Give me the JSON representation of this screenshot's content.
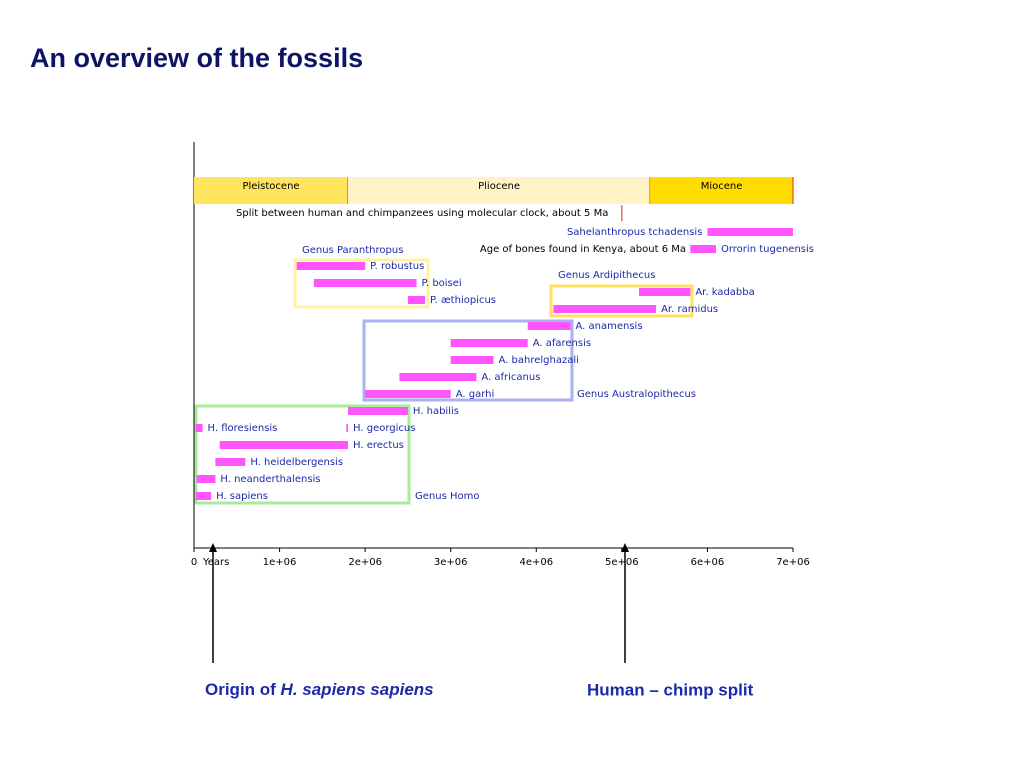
{
  "title": "An overview of the fossils",
  "chart_data": {
    "type": "timeline",
    "x_label": "Years",
    "xlim": [
      0,
      7000000
    ],
    "xticks": [
      0,
      {
        "value": 1000000,
        "label": "1e+06"
      },
      {
        "value": 2000000,
        "label": "2e+06"
      },
      {
        "value": 3000000,
        "label": "3e+06"
      },
      {
        "value": 4000000,
        "label": "4e+06"
      },
      {
        "value": 5000000,
        "label": "5e+06"
      },
      {
        "value": 6000000,
        "label": "6e+06"
      },
      {
        "value": 7000000,
        "label": "7e+06"
      }
    ],
    "epochs": [
      {
        "name": "Pleistocene",
        "start": 0,
        "end": 1800000,
        "color": "#ffe45e"
      },
      {
        "name": "Pliocene",
        "start": 1800000,
        "end": 5330000,
        "color": "#fff2c4"
      },
      {
        "name": "Miocene",
        "start": 5330000,
        "end": 7000000,
        "color": "#ffdd00"
      }
    ],
    "split": {
      "value": 5000000,
      "label": "Split between human and chimpanzees using molecular clock, about 5 Ma"
    },
    "kenya_note": "Age of bones found in Kenya, about 6 Ma",
    "bar_color": "#ff55ff",
    "bars": [
      {
        "name": "Sahelanthropus tchadensis",
        "start": 6000000,
        "end": 7000000
      },
      {
        "name": "Orrorin tugenensis",
        "start": 5800000,
        "end": 6100000
      },
      {
        "name": "P. robustus",
        "start": 1200000,
        "end": 2000000
      },
      {
        "name": "P. boisei",
        "start": 1400000,
        "end": 2600000
      },
      {
        "name": "P. æthiopicus",
        "start": 2500000,
        "end": 2700000
      },
      {
        "name": "Ar. kadabba",
        "start": 5200000,
        "end": 5800000
      },
      {
        "name": "Ar. ramidus",
        "start": 4200000,
        "end": 5400000
      },
      {
        "name": "A. anamensis",
        "start": 3900000,
        "end": 4400000
      },
      {
        "name": "A. afarensis",
        "start": 3000000,
        "end": 3900000
      },
      {
        "name": "A. bahrelghazali",
        "start": 3000000,
        "end": 3500000
      },
      {
        "name": "A. africanus",
        "start": 2400000,
        "end": 3300000
      },
      {
        "name": "A. garhi",
        "start": 2000000,
        "end": 3000000
      },
      {
        "name": "H. habilis",
        "start": 1800000,
        "end": 2500000
      },
      {
        "name": "H. floresiensis",
        "start": 20000,
        "end": 100000
      },
      {
        "name": "H. georgicus",
        "start": 1780000,
        "end": 1800000
      },
      {
        "name": "H. erectus",
        "start": 300000,
        "end": 1800000
      },
      {
        "name": "H. heidelbergensis",
        "start": 250000,
        "end": 600000
      },
      {
        "name": "H. neanderthalensis",
        "start": 30000,
        "end": 250000
      },
      {
        "name": "H. sapiens",
        "start": 20000,
        "end": 200000
      }
    ],
    "genera": [
      "Genus Paranthropus",
      "Genus Ardipithecus",
      "Genus Australopithecus",
      "Genus Homo"
    ]
  },
  "captions": {
    "origin_prefix": "Origin of ",
    "origin_species": "H. sapiens sapiens",
    "split": "Human – chimp split"
  }
}
